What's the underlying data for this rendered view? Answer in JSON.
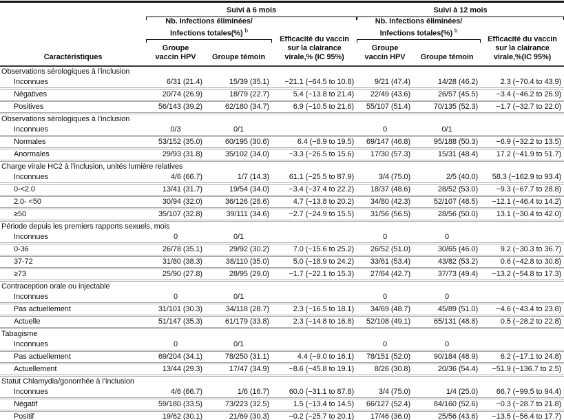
{
  "header": {
    "characteristics_label": "Caractéristiques",
    "followups": [
      {
        "title": "Suivi à 6 mois",
        "subheader_line1": "Nb. Infections éliminées/",
        "subheader_line2": "Infections totales(%)",
        "subheader_sup": "b",
        "col_vaccine_line1": "Groupe",
        "col_vaccine_line2": "vaccin HPV",
        "col_control": "Groupe témoin",
        "efficacy_lines": [
          "Efficacité du vaccin",
          "sur la clairance",
          "virale,% (IC 95%)"
        ]
      },
      {
        "title": "Suivi à 12 mois",
        "subheader_line1": "Nb. Infections éliminées/",
        "subheader_line2": "Infections totales(%)",
        "subheader_sup": "b",
        "col_vaccine_line1": "Groupe",
        "col_vaccine_line2": "vaccin HPV",
        "col_control": "Groupe témoin",
        "efficacy_lines": [
          "Efficacité du vaccin",
          "sur la clairance",
          "virale,%(IC 95%)"
        ]
      }
    ]
  },
  "sections": [
    {
      "title": "Observations sérologiques à l’inclusion",
      "rows": [
        {
          "label": "Inconnues",
          "values": [
            "6/31 (21.4)",
            "15/39 (35.1)",
            "−21.1 (−64.5 to 10.8)",
            "9/21 (47.4)",
            "14/28 (46.2)",
            "2.3 (−70.4 to 43.9)"
          ]
        },
        {
          "label": "Négatives",
          "values": [
            "20/74 (26.9)",
            "18/79 (22.7)",
            "5.4 (−13.8 to 21.4)",
            "22/49 (43.6)",
            "26/57 (45.5)",
            "−3.4 (−46.2 to 26.9)"
          ]
        },
        {
          "label": "Positives",
          "values": [
            "56/143 (39.2)",
            "62/180 (34.7)",
            "6.9 (−10.5 to 21.6)",
            "55/107 (51.4)",
            "70/135 (52.3)",
            "−1.7 (−32.7 to 22.0)"
          ]
        }
      ]
    },
    {
      "title": "Observations sérologiques à l’inclusion",
      "rows": [
        {
          "label": "Inconnues",
          "values": [
            "0/3",
            "0/1",
            "",
            "0",
            "0/1",
            ""
          ]
        },
        {
          "label": "Normales",
          "values": [
            "53/152 (35.0)",
            "60/195 (30.6)",
            "6.4 (−8.9 to 19.5)",
            "69/147 (46.8)",
            "95/188 (50.3)",
            "−6.9 (−32.2 to 13.5)"
          ]
        },
        {
          "label": "Anormales",
          "values": [
            "29/93 (31.8)",
            "35/102 (34.0)",
            "−3.3 (−26.5 to 15.6)",
            "17/30 (57.3)",
            "15/31 (48.4)",
            "17.2 (−41.9 to 51.7)"
          ]
        }
      ]
    },
    {
      "title": "Charge virale HC2 à l’inclusion, unités lumière relatives",
      "rows": [
        {
          "label": "Inconnues",
          "values": [
            "4/6 (66.7)",
            "1/7 (14.3)",
            "61.1 (−25.5 to 87.9)",
            "3/4 (75.0)",
            "2/5 (40.0)",
            "58.3 (−162.9 to 93.4)"
          ]
        },
        {
          "label": "0-<2.0",
          "values": [
            "13/41 (31.7)",
            "19/54 (34.0)",
            "−3.4 (−37.4 to 22.2)",
            "18/37 (48.6)",
            "28/52 (53.0)",
            "−9.3 (−67.7 to 28.8)"
          ]
        },
        {
          "label": "2.0- <50",
          "values": [
            "30/94 (32.0)",
            "36/126 (28.6)",
            "4.7 (−13.8 to 20.2)",
            "34/80 (42.3)",
            "52/107 (48.5)",
            "−12.1 (−46.4 to 14.2)"
          ]
        },
        {
          "label": "≥50",
          "values": [
            "35/107 (32.8)",
            "39/111 (34.6)",
            "−2.7 (−24.9 to 15.5)",
            "31/56 (56.5)",
            "28/56 (50.0)",
            "13.1 (−30.4 to 42.0)"
          ]
        }
      ]
    },
    {
      "title": "Période depuis les premiers rapports sexuels, mois",
      "rows": [
        {
          "label": "Inconnues",
          "values": [
            "0",
            "0/1",
            "",
            "0",
            "0",
            ""
          ]
        },
        {
          "label": "0-36",
          "values": [
            "26/78 (35.1)",
            "29/92 (30.2)",
            "7.0 (−15.6 to 25.2)",
            "26/52 (51.0)",
            "30/65 (46.0)",
            "9.2 (−30.3 to 36.7)"
          ]
        },
        {
          "label": "37-72",
          "values": [
            "31/80 (38.3)",
            "38/110 (35.0)",
            "5.0 (−18.9 to 24.2)",
            "33/61 (53.4)",
            "43/82 (53.2)",
            "0.6 (−42.8 to 30.8)"
          ]
        },
        {
          "label": "≥73",
          "values": [
            "25/90 (27.8)",
            "28/95 (29.0)",
            "−1.7 (−22.1 to 15.3)",
            "27/64 (42.7)",
            "37/73 (49.4)",
            "−13.2 (−54.8 to 17.3)"
          ]
        }
      ]
    },
    {
      "title": "Contraception orale ou injectable",
      "rows": [
        {
          "label": "Inconnues",
          "values": [
            "0",
            "0/1",
            "",
            "0",
            "0",
            ""
          ]
        },
        {
          "label": "Pas actuellement",
          "values": [
            "31/101 (30.3)",
            "34/118 (28.7)",
            "2.3 (−16.5 to 18.1)",
            "34/69 (48.7)",
            "45/89 (51.0)",
            "−4.6 (−43.4 to 23.8)"
          ]
        },
        {
          "label": "Actuelle",
          "values": [
            "51/147 (35.3)",
            "61/179 (33.8)",
            "2.3 (−14.8 to 16.8)",
            "52/108 (49.1)",
            "65/131 (48.8)",
            "0.5 (−28.2 to 22.8)"
          ]
        }
      ]
    },
    {
      "title": "Tabagisme",
      "rows": [
        {
          "label": "Inconnues",
          "values": [
            "0",
            "0/1",
            "",
            "0",
            "0",
            ""
          ]
        },
        {
          "label": "Pas actuellement",
          "values": [
            "69/204 (34.1)",
            "78/250 (31.1)",
            "4.4 (−9.0 to 16.1)",
            "78/151 (52.0)",
            "90/184 (48.9)",
            "6.2 (−17.1 to 24.8)"
          ]
        },
        {
          "label": "Actuellement",
          "values": [
            "13/44 (29.3)",
            "17/47 (34.9)",
            "−8.6 (−45.8 to 19.1)",
            "8/26 (30.8)",
            "20/36 (54.4)",
            "−51.9 (−136.7 to 2.5)"
          ]
        }
      ]
    },
    {
      "title": "Statut Chlamydia/gonorrhée à l’inclusion",
      "rows": [
        {
          "label": "Inconnues",
          "values": [
            "4/6 (66.7)",
            "1/6 (16.7)",
            "60.0 (−31.1 to 87.8)",
            "3/4 (75.0)",
            "1/4 (25.0)",
            "66.7 (−99.5 to 94.4)"
          ]
        },
        {
          "label": "Négatif",
          "values": [
            "59/180 (33.5)",
            "73/223 (32.5)",
            "1.5 (−13.4 to 14.5)",
            "66/127 (52.4)",
            "84/160 (52.6)",
            "−0.3 (−28.7 to 21.8)"
          ]
        },
        {
          "label": "Positif",
          "values": [
            "19/62 (30.1)",
            "21/69 (30.3)",
            "−0.2 (−25.7 to 20.1)",
            "17/46 (36.0)",
            "25/56 (43.6)",
            "−13.5 (−56.4 to 17.7)"
          ]
        }
      ]
    }
  ],
  "style": {
    "text_color": "#101010",
    "row_rule_color": "#a9a9a9",
    "header_rule_color": "#3a3a3a",
    "frame_color": "#131313"
  }
}
